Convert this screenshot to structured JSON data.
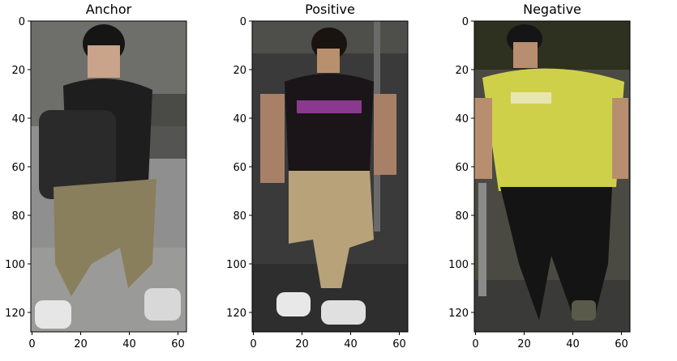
{
  "panels": [
    {
      "id": "anchor",
      "title": "Anchor",
      "image": {
        "description": "person with backpack, dark top, khaki cropped pants, white sneakers",
        "top": "#1e1e1e",
        "bottom": "#8a7f5c",
        "shoe": "#e6e6e6",
        "bg": "#8c8c8c"
      },
      "xticks": [
        "0",
        "20",
        "40",
        "60"
      ],
      "yticks": [
        "0",
        "20",
        "40",
        "60",
        "80",
        "100",
        "120"
      ]
    },
    {
      "id": "positive",
      "title": "Positive",
      "image": {
        "description": "person with black top with purple print, beige cropped pants, white sneakers",
        "top": "#1b1418",
        "bottom": "#b8a27a",
        "shoe": "#e8e8e8",
        "bg": "#3a3a3a"
      },
      "xticks": [
        "0",
        "20",
        "40",
        "60"
      ],
      "yticks": [
        "0",
        "20",
        "40",
        "60",
        "80",
        "100",
        "120"
      ]
    },
    {
      "id": "negative",
      "title": "Negative",
      "image": {
        "description": "person in yellow t-shirt and black pants",
        "top": "#cfd04a",
        "bottom": "#141414",
        "shoe": "#5a5a4a",
        "bg": "#4a4a42"
      },
      "xticks": [
        "0",
        "20",
        "40",
        "60"
      ],
      "yticks": [
        "0",
        "20",
        "40",
        "60",
        "80",
        "100",
        "120"
      ]
    }
  ]
}
